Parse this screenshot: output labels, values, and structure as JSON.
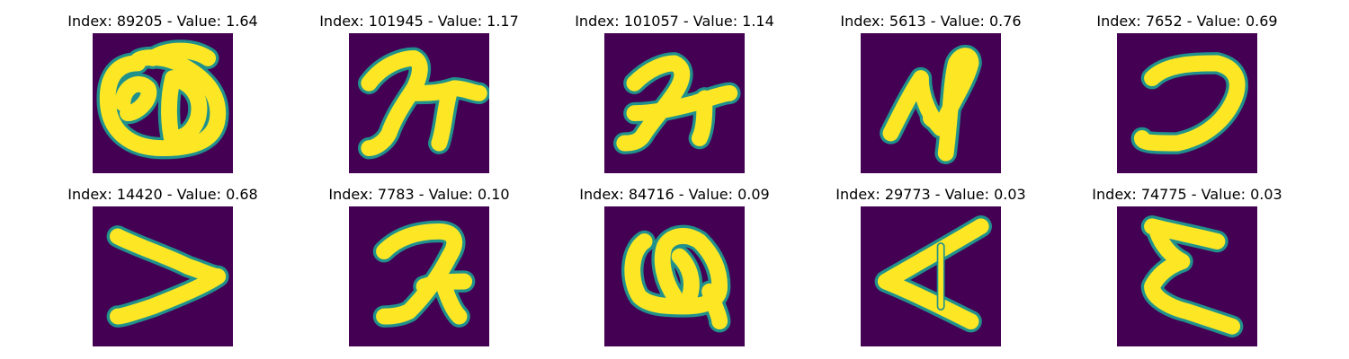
{
  "colors": {
    "background": "#440154",
    "stroke_core": "#fde725",
    "stroke_edge": "#21918c"
  },
  "panels": [
    {
      "title": "Index: 89205 - Value: 1.64"
    },
    {
      "title": "Index: 101945 - Value: 1.17"
    },
    {
      "title": "Index: 101057 - Value: 1.14"
    },
    {
      "title": "Index: 5613 - Value: 0.76"
    },
    {
      "title": "Index: 7652 - Value: 0.69"
    },
    {
      "title": "Index: 14420 - Value: 0.68"
    },
    {
      "title": "Index: 7783 - Value: 0.10"
    },
    {
      "title": "Index: 84716 - Value: 0.09"
    },
    {
      "title": "Index: 29773 - Value: 0.03"
    },
    {
      "title": "Index: 74775 - Value: 0.03"
    }
  ]
}
